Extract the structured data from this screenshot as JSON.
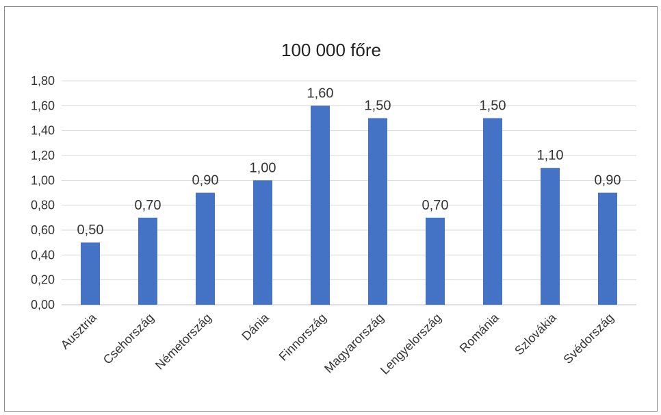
{
  "chart_data": {
    "type": "bar",
    "title": "100 000 főre",
    "xlabel": "",
    "ylabel": "",
    "categories": [
      "Ausztria",
      "Csehország",
      "Németország",
      "Dánia",
      "Finnország",
      "Magyarország",
      "Lengyelország",
      "Románia",
      "Szlovákia",
      "Svédország"
    ],
    "values": [
      0.5,
      0.7,
      0.9,
      1.0,
      1.6,
      1.5,
      0.7,
      1.5,
      1.1,
      0.9
    ],
    "data_labels": [
      "0,50",
      "0,70",
      "0,90",
      "1,00",
      "1,60",
      "1,50",
      "0,70",
      "1,50",
      "1,10",
      "0,90"
    ],
    "ylim": [
      0,
      1.8
    ],
    "yticks": [
      "0,00",
      "0,20",
      "0,40",
      "0,60",
      "0,80",
      "1,00",
      "1,20",
      "1,40",
      "1,60",
      "1,80"
    ],
    "grid": true,
    "legend": "none",
    "bar_color": "#4472c4",
    "grid_color": "#d9d9d9"
  }
}
